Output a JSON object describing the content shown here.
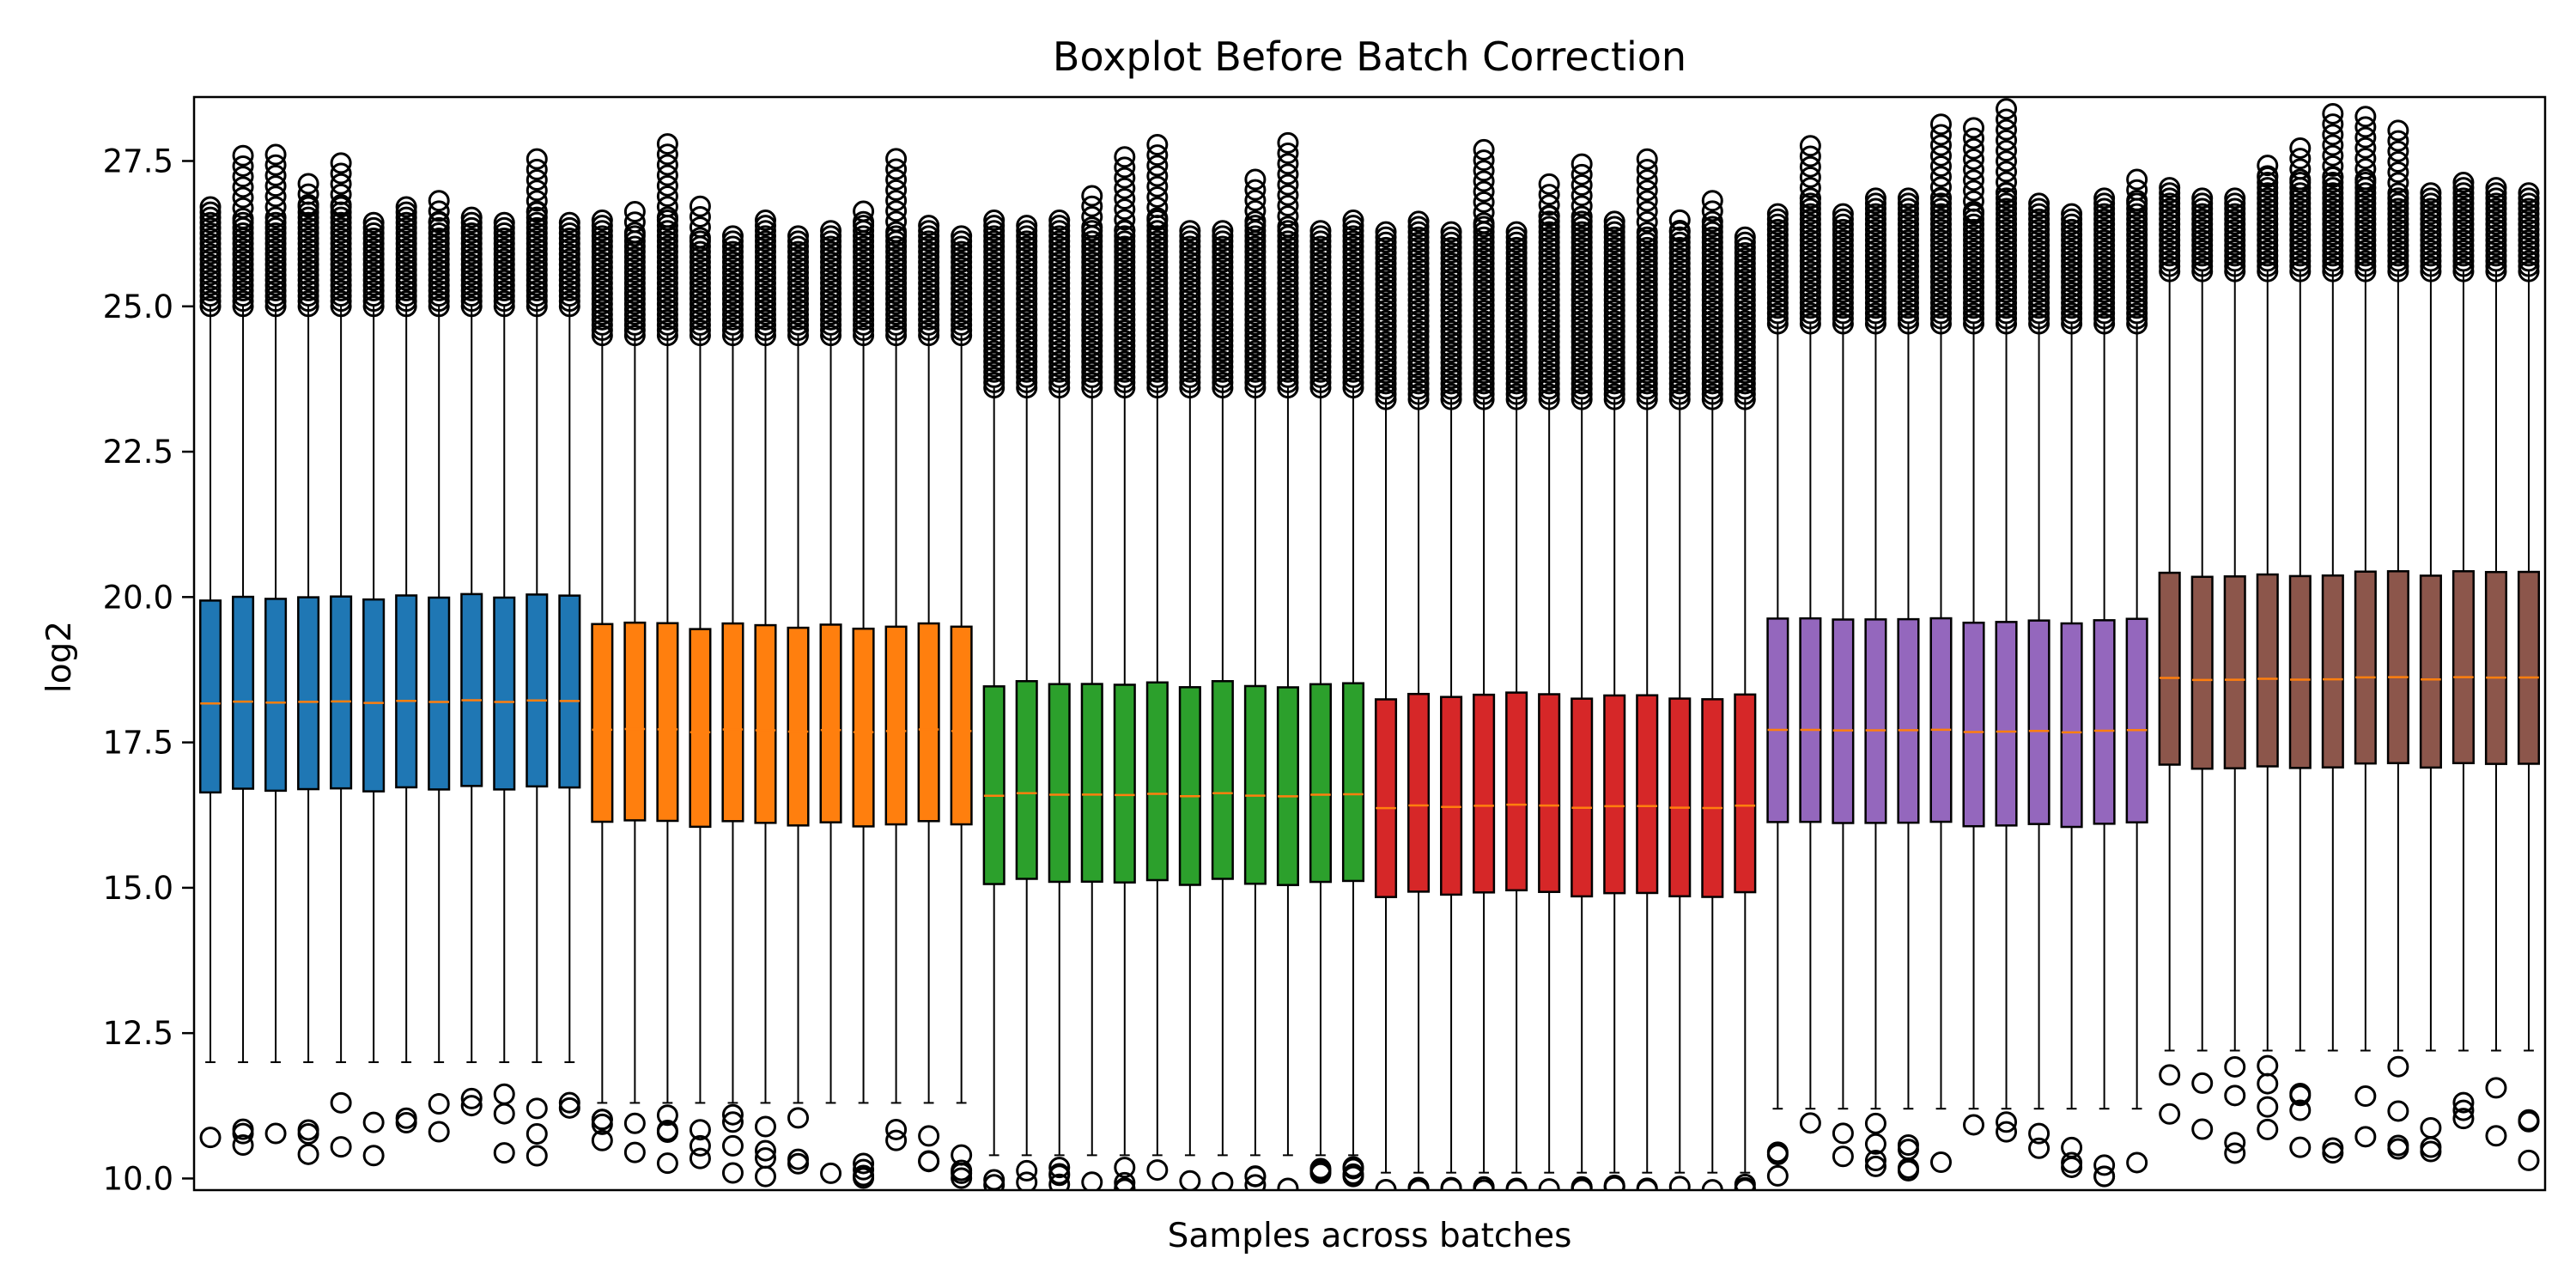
{
  "chart_data": {
    "type": "boxplot",
    "title": "Boxplot Before Batch Correction",
    "xlabel": "Samples across batches",
    "ylabel": "log2",
    "ylim": [
      9.8,
      28.6
    ],
    "yticks": [
      "10.0",
      "12.5",
      "15.0",
      "17.5",
      "20.0",
      "22.5",
      "25.0",
      "27.5"
    ],
    "grid": false,
    "legend": "none",
    "boxes_per_batch": 12,
    "batches": [
      {
        "color": "#1f77b4",
        "q1": 16.7,
        "median": 18.2,
        "q3": 20.0,
        "whisker_low": 12.0,
        "whisker_high": 25.0,
        "outlier_high_min": 25.0,
        "outlier_high_max": 26.5,
        "outlier_low_max": 11.8,
        "outlier_low_min": 10.3
      },
      {
        "color": "#ff7f0e",
        "q1": 16.1,
        "median": 17.7,
        "q3": 19.5,
        "whisker_low": 11.3,
        "whisker_high": 24.5,
        "outlier_high_min": 24.5,
        "outlier_high_max": 26.3,
        "outlier_low_max": 11.1,
        "outlier_low_min": 10.0
      },
      {
        "color": "#2ca02c",
        "q1": 15.1,
        "median": 16.6,
        "q3": 18.5,
        "whisker_low": 10.4,
        "whisker_high": 23.6,
        "outlier_high_min": 23.6,
        "outlier_high_max": 26.4,
        "outlier_low_max": 10.2,
        "outlier_low_min": 9.8
      },
      {
        "color": "#d62728",
        "q1": 14.9,
        "median": 16.4,
        "q3": 18.3,
        "whisker_low": 10.1,
        "whisker_high": 23.4,
        "outlier_high_min": 23.4,
        "outlier_high_max": 26.3,
        "outlier_low_max": 9.9,
        "outlier_low_min": 9.8
      },
      {
        "color": "#9467bd",
        "q1": 16.1,
        "median": 17.7,
        "q3": 19.6,
        "whisker_low": 11.2,
        "whisker_high": 24.7,
        "outlier_high_min": 24.7,
        "outlier_high_max": 26.7,
        "outlier_low_max": 11.0,
        "outlier_low_min": 10.0
      },
      {
        "color": "#8c564b",
        "q1": 17.1,
        "median": 18.6,
        "q3": 20.4,
        "whisker_low": 12.2,
        "whisker_high": 25.6,
        "outlier_high_min": 25.6,
        "outlier_high_max": 27.0,
        "outlier_low_max": 12.0,
        "outlier_low_min": 10.2
      }
    ]
  }
}
